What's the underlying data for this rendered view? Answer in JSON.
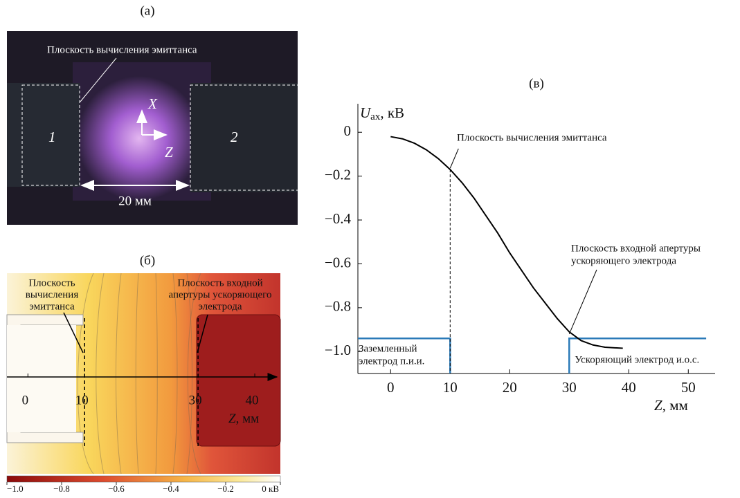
{
  "panel_a": {
    "label": "(а)",
    "annotation": "Плоскость вычисления эмиттанса",
    "electrode_1": "1",
    "electrode_2": "2",
    "axis_x": "X",
    "axis_z": "Z",
    "distance": "20 мм"
  },
  "panel_b": {
    "label": "(б)",
    "annotation_left": [
      "Плоскость",
      "вычисления",
      "эмиттанса"
    ],
    "annotation_right": [
      "Плоскость входной",
      "апертуры ускоряющего",
      "электрода"
    ],
    "xlim": [
      -3.7,
      43.9
    ],
    "xticks": [
      0,
      10,
      30,
      40
    ],
    "x_label_symbol": "Z",
    "x_label_unit": ",  мм",
    "colorbar_lim": [
      -1.0,
      0
    ],
    "colorbar_ticks": [
      {
        "value": -1.0,
        "label": "−1.0"
      },
      {
        "value": -0.8,
        "label": "−0.8"
      },
      {
        "value": -0.6,
        "label": "−0.6"
      },
      {
        "value": -0.4,
        "label": "−0.4"
      },
      {
        "value": -0.2,
        "label": "−0.2"
      },
      {
        "value": 0,
        "label": "0 кВ"
      }
    ]
  },
  "chart_data": {
    "type": "line",
    "title": "(в)",
    "y_label_symbol": "U",
    "y_label_subscript": "ax",
    "y_label_unit": ", кВ",
    "x_label_symbol": "Z",
    "x_label_unit": ", мм",
    "x": [
      0,
      2,
      4,
      6,
      8,
      10,
      12,
      14,
      16,
      18,
      20,
      22,
      24,
      26,
      28,
      30,
      32,
      34,
      36,
      39
    ],
    "values": [
      -0.02,
      -0.03,
      -0.05,
      -0.08,
      -0.12,
      -0.17,
      -0.23,
      -0.3,
      -0.38,
      -0.46,
      -0.55,
      -0.63,
      -0.71,
      -0.78,
      -0.85,
      -0.91,
      -0.95,
      -0.97,
      -0.98,
      -0.985
    ],
    "color": "#000000",
    "xlim": [
      -5.5,
      54.5
    ],
    "ylim": [
      -1.1,
      0.13
    ],
    "xticks": [
      0,
      10,
      20,
      30,
      40,
      50
    ],
    "yticks": [
      0,
      {
        "value": -0.2,
        "label": "−0.2"
      },
      {
        "value": -0.4,
        "label": "−0.4"
      },
      {
        "value": -0.6,
        "label": "−0.6"
      },
      {
        "value": -0.8,
        "label": "−0.8"
      },
      {
        "value": -1.0,
        "label": "−1.0"
      }
    ],
    "emittance_plane": {
      "x": 10,
      "y": -0.17,
      "label": "Плоскость вычисления эмиттанса"
    },
    "aperture_plane": {
      "x": 30,
      "y": -0.92,
      "label": [
        "Плоскость входной апертуры",
        "ускоряющего электрода"
      ]
    },
    "electrode_color": "#2a7ab8",
    "electrodes": [
      {
        "x": [
          -5.5,
          10,
          10
        ],
        "values": [
          -0.94,
          -0.94,
          -1.1
        ],
        "label": [
          "Заземленный",
          "электрод п.и.и."
        ]
      },
      {
        "x": [
          30,
          30,
          53
        ],
        "values": [
          -1.1,
          -0.94,
          -0.94
        ],
        "label": [
          "Ускоряющий электрод и.о.с."
        ]
      }
    ]
  }
}
